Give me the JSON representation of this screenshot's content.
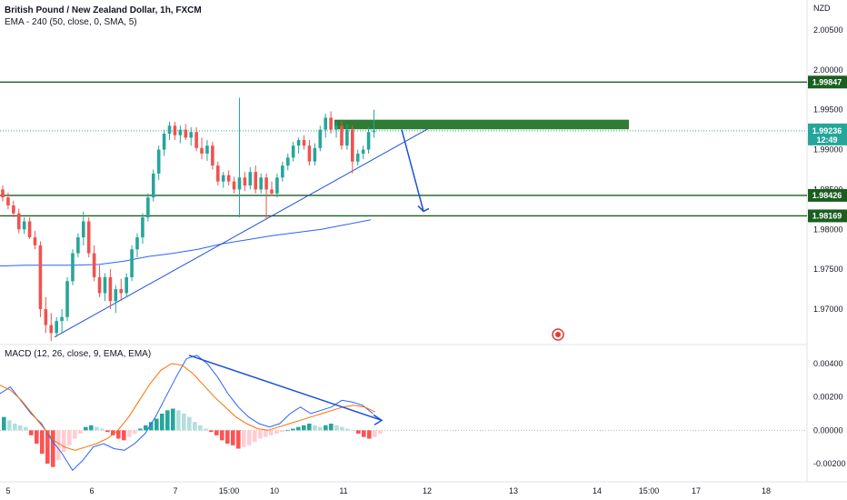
{
  "header": {
    "symbol_line": "British Pound / New Zealand Dollar, 1h, FXCM",
    "ema_line": "EMA - 240 (50, close, 0, SMA, 5)",
    "macd_line": "MACD (12, 26, close, 9, EMA, EMA)",
    "currency": "NZD"
  },
  "chart_data": [
    {
      "type": "candlestick",
      "title": "British Pound / New Zealand Dollar, 1h, FXCM",
      "y_ticks": [
        "2.00500",
        "2.00000",
        "1.99500",
        "1.99000",
        "1.98500",
        "1.98000",
        "1.97500",
        "1.97000"
      ],
      "x_ticks": [
        "5",
        "6",
        "7",
        "15:00",
        "10",
        "11",
        "12",
        "13",
        "14",
        "15:00",
        "17",
        "18"
      ],
      "horizontal_levels": [
        {
          "label": "1.99847",
          "value": 1.99847
        },
        {
          "label": "1.98426",
          "value": 1.98426
        },
        {
          "label": "1.98169",
          "value": 1.98169
        }
      ],
      "current_price": {
        "value": "1.99236",
        "countdown": "12:49"
      },
      "candles": [
        [
          1.985,
          1.9855,
          1.9835,
          1.984
        ],
        [
          1.984,
          1.9846,
          1.9825,
          1.983
        ],
        [
          1.983,
          1.9836,
          1.9815,
          1.982
        ],
        [
          1.982,
          1.9826,
          1.9795,
          1.98
        ],
        [
          1.98,
          1.9815,
          1.9794,
          1.981
        ],
        [
          1.981,
          1.9815,
          1.9788,
          1.979
        ],
        [
          1.979,
          1.9798,
          1.9775,
          1.978
        ],
        [
          1.978,
          1.9785,
          1.969,
          1.97
        ],
        [
          1.97,
          1.9715,
          1.967,
          1.968
        ],
        [
          1.968,
          1.9695,
          1.966,
          1.967
        ],
        [
          1.967,
          1.969,
          1.9665,
          1.9685
        ],
        [
          1.9685,
          1.97,
          1.967,
          1.969
        ],
        [
          1.969,
          1.974,
          1.9685,
          1.9735
        ],
        [
          1.9735,
          1.9775,
          1.973,
          1.977
        ],
        [
          1.977,
          1.9795,
          1.9765,
          1.979
        ],
        [
          1.979,
          1.9822,
          1.978,
          1.981
        ],
        [
          1.981,
          1.9815,
          1.9765,
          1.977
        ],
        [
          1.977,
          1.978,
          1.9735,
          1.974
        ],
        [
          1.974,
          1.9755,
          1.9715,
          1.972
        ],
        [
          1.972,
          1.9745,
          1.971,
          1.974
        ],
        [
          1.974,
          1.975,
          1.97,
          1.971
        ],
        [
          1.971,
          1.973,
          1.9695,
          1.9725
        ],
        [
          1.9725,
          1.9738,
          1.971,
          1.972
        ],
        [
          1.972,
          1.9745,
          1.9715,
          1.974
        ],
        [
          1.974,
          1.978,
          1.9735,
          1.9775
        ],
        [
          1.9775,
          1.9795,
          1.9765,
          1.979
        ],
        [
          1.979,
          1.982,
          1.9782,
          1.9815
        ],
        [
          1.9815,
          1.9845,
          1.981,
          1.984
        ],
        [
          1.984,
          1.9875,
          1.9835,
          1.987
        ],
        [
          1.987,
          1.9905,
          1.9862,
          1.99
        ],
        [
          1.99,
          1.9925,
          1.9892,
          1.992
        ],
        [
          1.992,
          1.9935,
          1.9912,
          1.993
        ],
        [
          1.993,
          1.9935,
          1.9912,
          1.9918
        ],
        [
          1.9918,
          1.993,
          1.9908,
          1.9925
        ],
        [
          1.9925,
          1.9932,
          1.9912,
          1.9915
        ],
        [
          1.9915,
          1.9928,
          1.9905,
          1.9922
        ],
        [
          1.9922,
          1.9928,
          1.9898,
          1.9902
        ],
        [
          1.9902,
          1.9915,
          1.9888,
          1.9895
        ],
        [
          1.9895,
          1.9912,
          1.9886,
          1.9905
        ],
        [
          1.9905,
          1.991,
          1.9875,
          1.988
        ],
        [
          1.988,
          1.9885,
          1.9855,
          1.986
        ],
        [
          1.986,
          1.9872,
          1.9852,
          1.9868
        ],
        [
          1.9868,
          1.9874,
          1.9855,
          1.986
        ],
        [
          1.986,
          1.9866,
          1.9845,
          1.985
        ],
        [
          1.985,
          1.9965,
          1.9815,
          1.9865
        ],
        [
          1.9865,
          1.9872,
          1.9848,
          1.9855
        ],
        [
          1.9855,
          1.9878,
          1.985,
          1.9872
        ],
        [
          1.9872,
          1.988,
          1.9845,
          1.985
        ],
        [
          1.985,
          1.987,
          1.9845,
          1.9865
        ],
        [
          1.9865,
          1.987,
          1.9812,
          1.985
        ],
        [
          1.985,
          1.986,
          1.9842,
          1.9845
        ],
        [
          1.9845,
          1.987,
          1.984,
          1.9865
        ],
        [
          1.9865,
          1.9885,
          1.986,
          1.988
        ],
        [
          1.988,
          1.9895,
          1.9874,
          1.989
        ],
        [
          1.989,
          1.991,
          1.9885,
          1.9905
        ],
        [
          1.9905,
          1.9915,
          1.9895,
          1.9912
        ],
        [
          1.9912,
          1.9918,
          1.99,
          1.9905
        ],
        [
          1.9905,
          1.9912,
          1.988,
          1.9885
        ],
        [
          1.9885,
          1.9908,
          1.988,
          1.9902
        ],
        [
          1.9902,
          1.993,
          1.9898,
          1.9925
        ],
        [
          1.9925,
          1.9945,
          1.9915,
          1.994
        ],
        [
          1.994,
          1.9948,
          1.992,
          1.9925
        ],
        [
          1.9925,
          1.9935,
          1.9915,
          1.993
        ],
        [
          1.993,
          1.9936,
          1.99,
          1.9905
        ],
        [
          1.9905,
          1.9932,
          1.99,
          1.9925
        ],
        [
          1.9925,
          1.993,
          1.987,
          1.9885
        ],
        [
          1.9885,
          1.99,
          1.988,
          1.9895
        ],
        [
          1.9895,
          1.9905,
          1.9888,
          1.99
        ],
        [
          1.99,
          1.9928,
          1.9895,
          1.9922
        ],
        [
          1.9922,
          1.995,
          1.9915,
          1.9924
        ]
      ],
      "ema_240": [
        1.9754,
        1.9755,
        1.9755,
        1.9755,
        1.9756,
        1.976,
        1.9766,
        1.977,
        1.9775,
        1.9782,
        1.9787,
        1.9792,
        1.9796,
        1.98,
        1.9806,
        1.9812
      ],
      "annotations": {
        "supply_zone": {
          "top": 1.99375,
          "bottom": 1.99255
        },
        "trendline_start": 1.9665,
        "trendline_end": 1.9935,
        "projection_target": 1.98169
      }
    },
    {
      "type": "bar",
      "title": "MACD (12, 26, close, 9, EMA, EMA)",
      "y_ticks": [
        "0.00400",
        "0.00200",
        "0.00000",
        "-0.00200"
      ],
      "histogram": [
        0.0008,
        0.0006,
        0.0004,
        0.0003,
        0.0002,
        -0.0003,
        -0.0008,
        -0.0014,
        -0.002,
        -0.0022,
        -0.0018,
        -0.0013,
        -0.0009,
        -0.0005,
        -0.0002,
        0.0002,
        0.0003,
        0.0002,
        0.0001,
        -0.0001,
        -0.0003,
        -0.0005,
        -0.0006,
        -0.0004,
        -0.0002,
        0.0001,
        0.0003,
        0.0005,
        0.0007,
        0.001,
        0.0012,
        0.0013,
        0.0012,
        0.001,
        0.0008,
        0.0005,
        0.0003,
        0.0001,
        -0.0001,
        -0.0003,
        -0.0006,
        -0.0008,
        -0.0009,
        -0.0011,
        -0.001,
        -0.0009,
        -0.0007,
        -0.0005,
        -0.0004,
        -0.0003,
        -0.0002,
        -0.0001,
        0.0,
        0.0001,
        0.0002,
        0.0003,
        0.0004,
        0.0003,
        0.0002,
        0.0003,
        0.0004,
        0.0003,
        0.0002,
        0.0001,
        0.0,
        -0.0002,
        -0.0004,
        -0.0005,
        -0.0004,
        -0.0002
      ],
      "macd_line": [
        0.0022,
        0.0026,
        0.0018,
        0.001,
        0.0004,
        -0.0006,
        -0.0014,
        -0.0024,
        -0.0018,
        -0.001,
        -0.0008,
        -0.0011,
        -0.0012,
        -0.0008,
        -0.0002,
        0.0008,
        0.002,
        0.0032,
        0.0043,
        0.0045,
        0.004,
        0.0032,
        0.0022,
        0.0014,
        0.0008,
        0.0004,
        0.0002,
        0.0004,
        0.001,
        0.0014,
        0.001,
        0.0012,
        0.0014,
        0.0018,
        0.0017,
        0.0015,
        0.001
      ],
      "signal_line": [
        0.0027,
        0.0024,
        0.0018,
        0.001,
        0.0002,
        -0.0006,
        -0.001,
        -0.0012,
        -0.001,
        -0.0008,
        -0.0005,
        0.0,
        0.0008,
        0.0018,
        0.0028,
        0.0036,
        0.004,
        0.0039,
        0.0034,
        0.0027,
        0.002,
        0.0014,
        0.0008,
        0.0004,
        0.0001,
        0.0,
        0.0002,
        0.0004,
        0.0006,
        0.0008,
        0.001,
        0.0012,
        0.0014,
        0.0015,
        0.0014,
        0.0011
      ]
    }
  ],
  "colors": {
    "up": "#26a69a",
    "down": "#ef5350",
    "hist_up_strong": "#26a69a",
    "hist_up_weak": "#b2dfdb",
    "hist_down_strong": "#ff5252",
    "hist_down_weak": "#ffcdd2",
    "macd": "#2962ff",
    "signal": "#ff6d00",
    "ema": "#2962ff",
    "level_line": "#1b5e20",
    "zone": "#2e7d32",
    "drawing": "#1e4fd8"
  }
}
